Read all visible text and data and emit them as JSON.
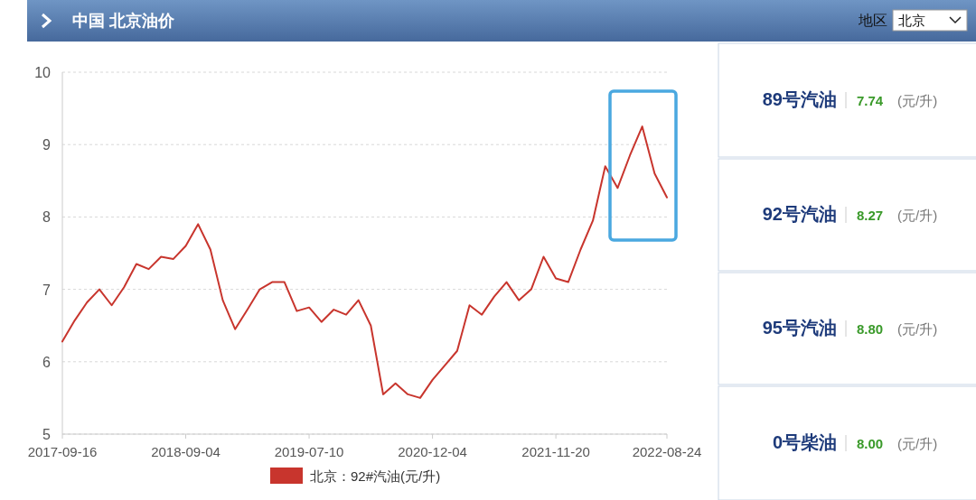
{
  "chart_data": [
    {
      "type": "line",
      "title": "中国 北京油价",
      "annotations": [
        "地区",
        "北京"
      ],
      "categories": [
        "2017-09-16",
        null,
        null,
        null,
        null,
        null,
        null,
        null,
        null,
        null,
        "2018-09-04",
        null,
        null,
        null,
        null,
        null,
        null,
        null,
        null,
        null,
        "2019-07-10",
        null,
        null,
        null,
        null,
        null,
        null,
        null,
        null,
        null,
        "2020-12-04",
        null,
        null,
        null,
        null,
        null,
        null,
        null,
        null,
        null,
        "2021-11-20",
        null,
        null,
        null,
        null,
        null,
        null,
        null,
        null,
        "2022-08-24"
      ],
      "series": [
        {
          "name": "北京：92#汽油(元/升)",
          "color": "#c8352d",
          "values": [
            6.28,
            6.57,
            6.82,
            7.0,
            6.78,
            7.03,
            7.35,
            7.28,
            7.45,
            7.42,
            7.6,
            7.9,
            7.55,
            6.85,
            6.45,
            6.72,
            7.0,
            7.1,
            7.1,
            6.7,
            6.75,
            6.55,
            6.72,
            6.65,
            6.85,
            6.5,
            5.55,
            5.7,
            5.55,
            5.5,
            5.75,
            5.95,
            6.15,
            6.78,
            6.65,
            6.9,
            7.1,
            6.85,
            7.0,
            7.45,
            7.15,
            7.1,
            7.55,
            7.95,
            8.7,
            8.4,
            8.85,
            9.25,
            8.6,
            8.27
          ]
        }
      ],
      "ylim": [
        5,
        10
      ],
      "yticks": [
        5,
        6,
        7,
        8,
        9,
        10
      ],
      "grid": "y",
      "legend": "bottom",
      "marker": "none",
      "line_style": "solid"
    },
    {
      "type": "other",
      "categories": [
        "89号汽油",
        "92号汽油",
        "95号汽油",
        "0号柴油"
      ],
      "value_labels": [
        "7.74",
        "8.27",
        "8.80",
        "8.00"
      ],
      "annotations": [
        "(元/升)",
        "(元/升)",
        "(元/升)",
        "(元/升)"
      ]
    }
  ]
}
